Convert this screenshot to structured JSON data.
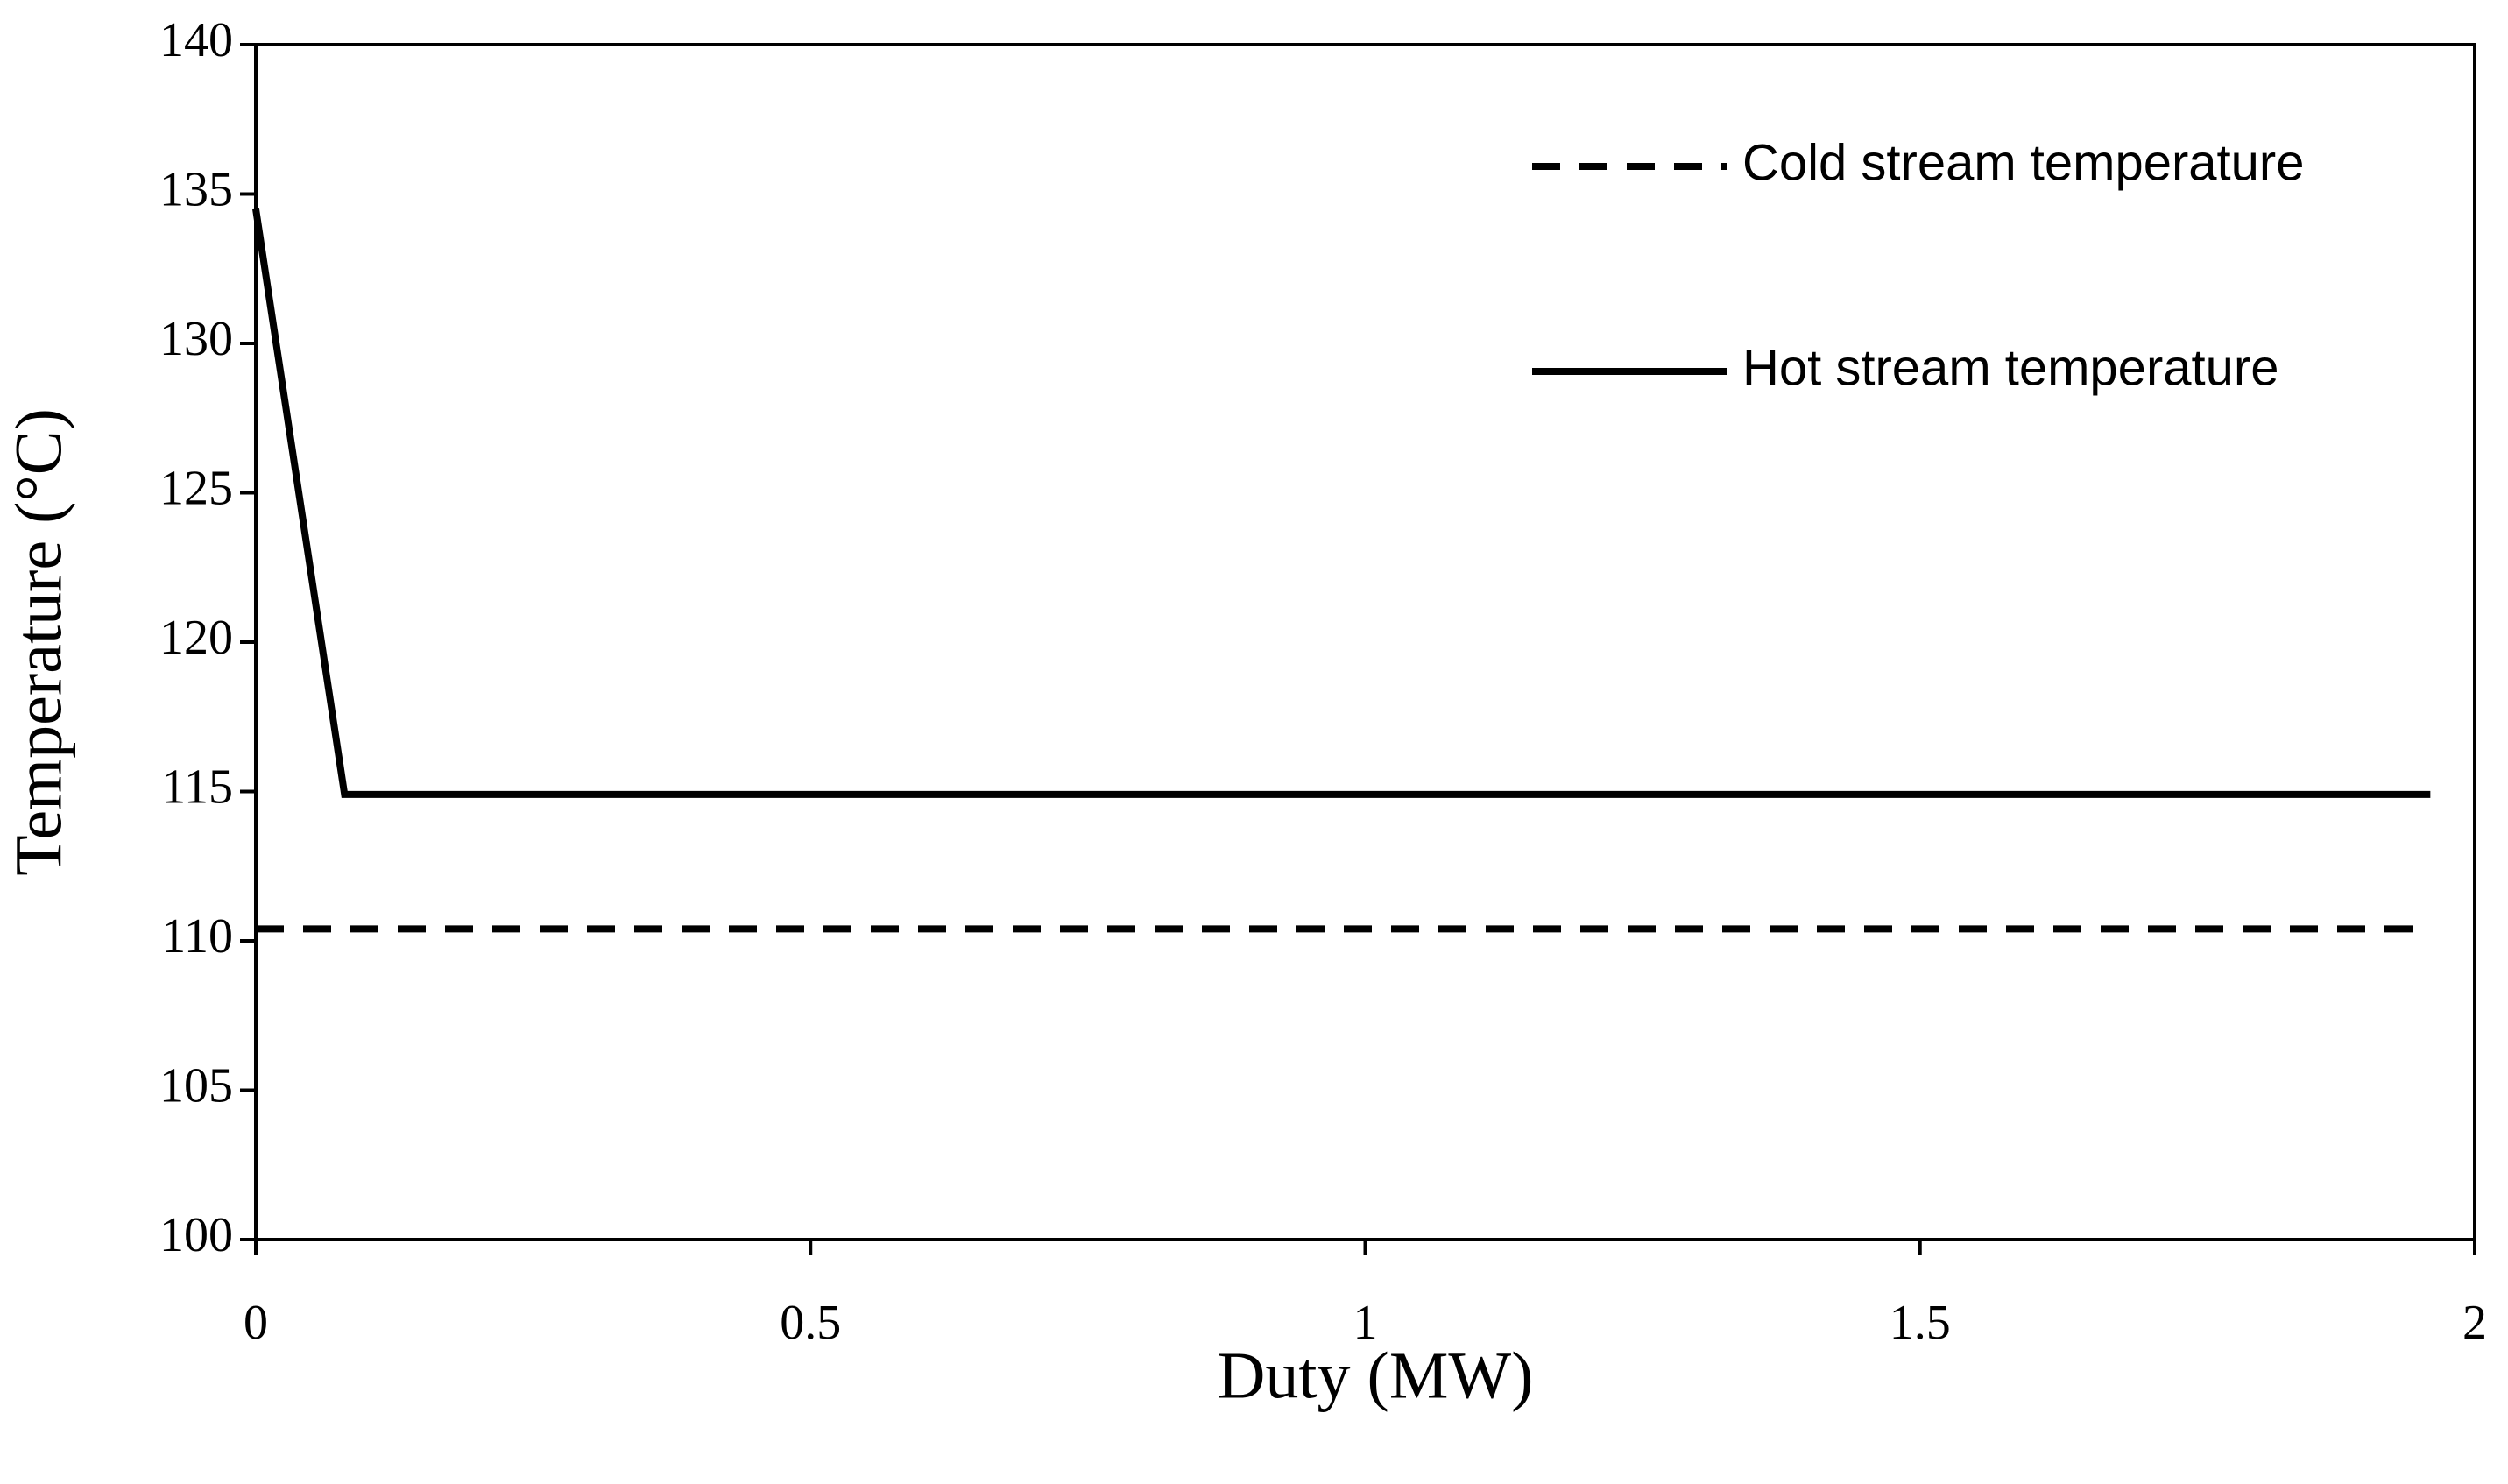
{
  "chart_data": {
    "type": "line",
    "x_label": "Duty (MW)",
    "y_label": "Temperature (°C)",
    "xlim": [
      0,
      2
    ],
    "xticks": [
      0,
      0.5,
      1,
      1.5,
      2
    ],
    "ylim": [
      100,
      140
    ],
    "yticks": [
      100,
      105,
      110,
      115,
      120,
      125,
      130,
      135,
      140
    ],
    "legend": "upper right",
    "grid": false,
    "series": [
      {
        "name": "Cold stream temperature",
        "color": "#000000",
        "dash": true,
        "x": [
          0,
          1.96
        ],
        "values": [
          110.4,
          110.4
        ]
      },
      {
        "name": "Hot stream temperature",
        "color": "#000000",
        "dash": false,
        "x": [
          0,
          0.08,
          1.96
        ],
        "values": [
          134.5,
          114.9,
          114.9
        ]
      }
    ]
  }
}
